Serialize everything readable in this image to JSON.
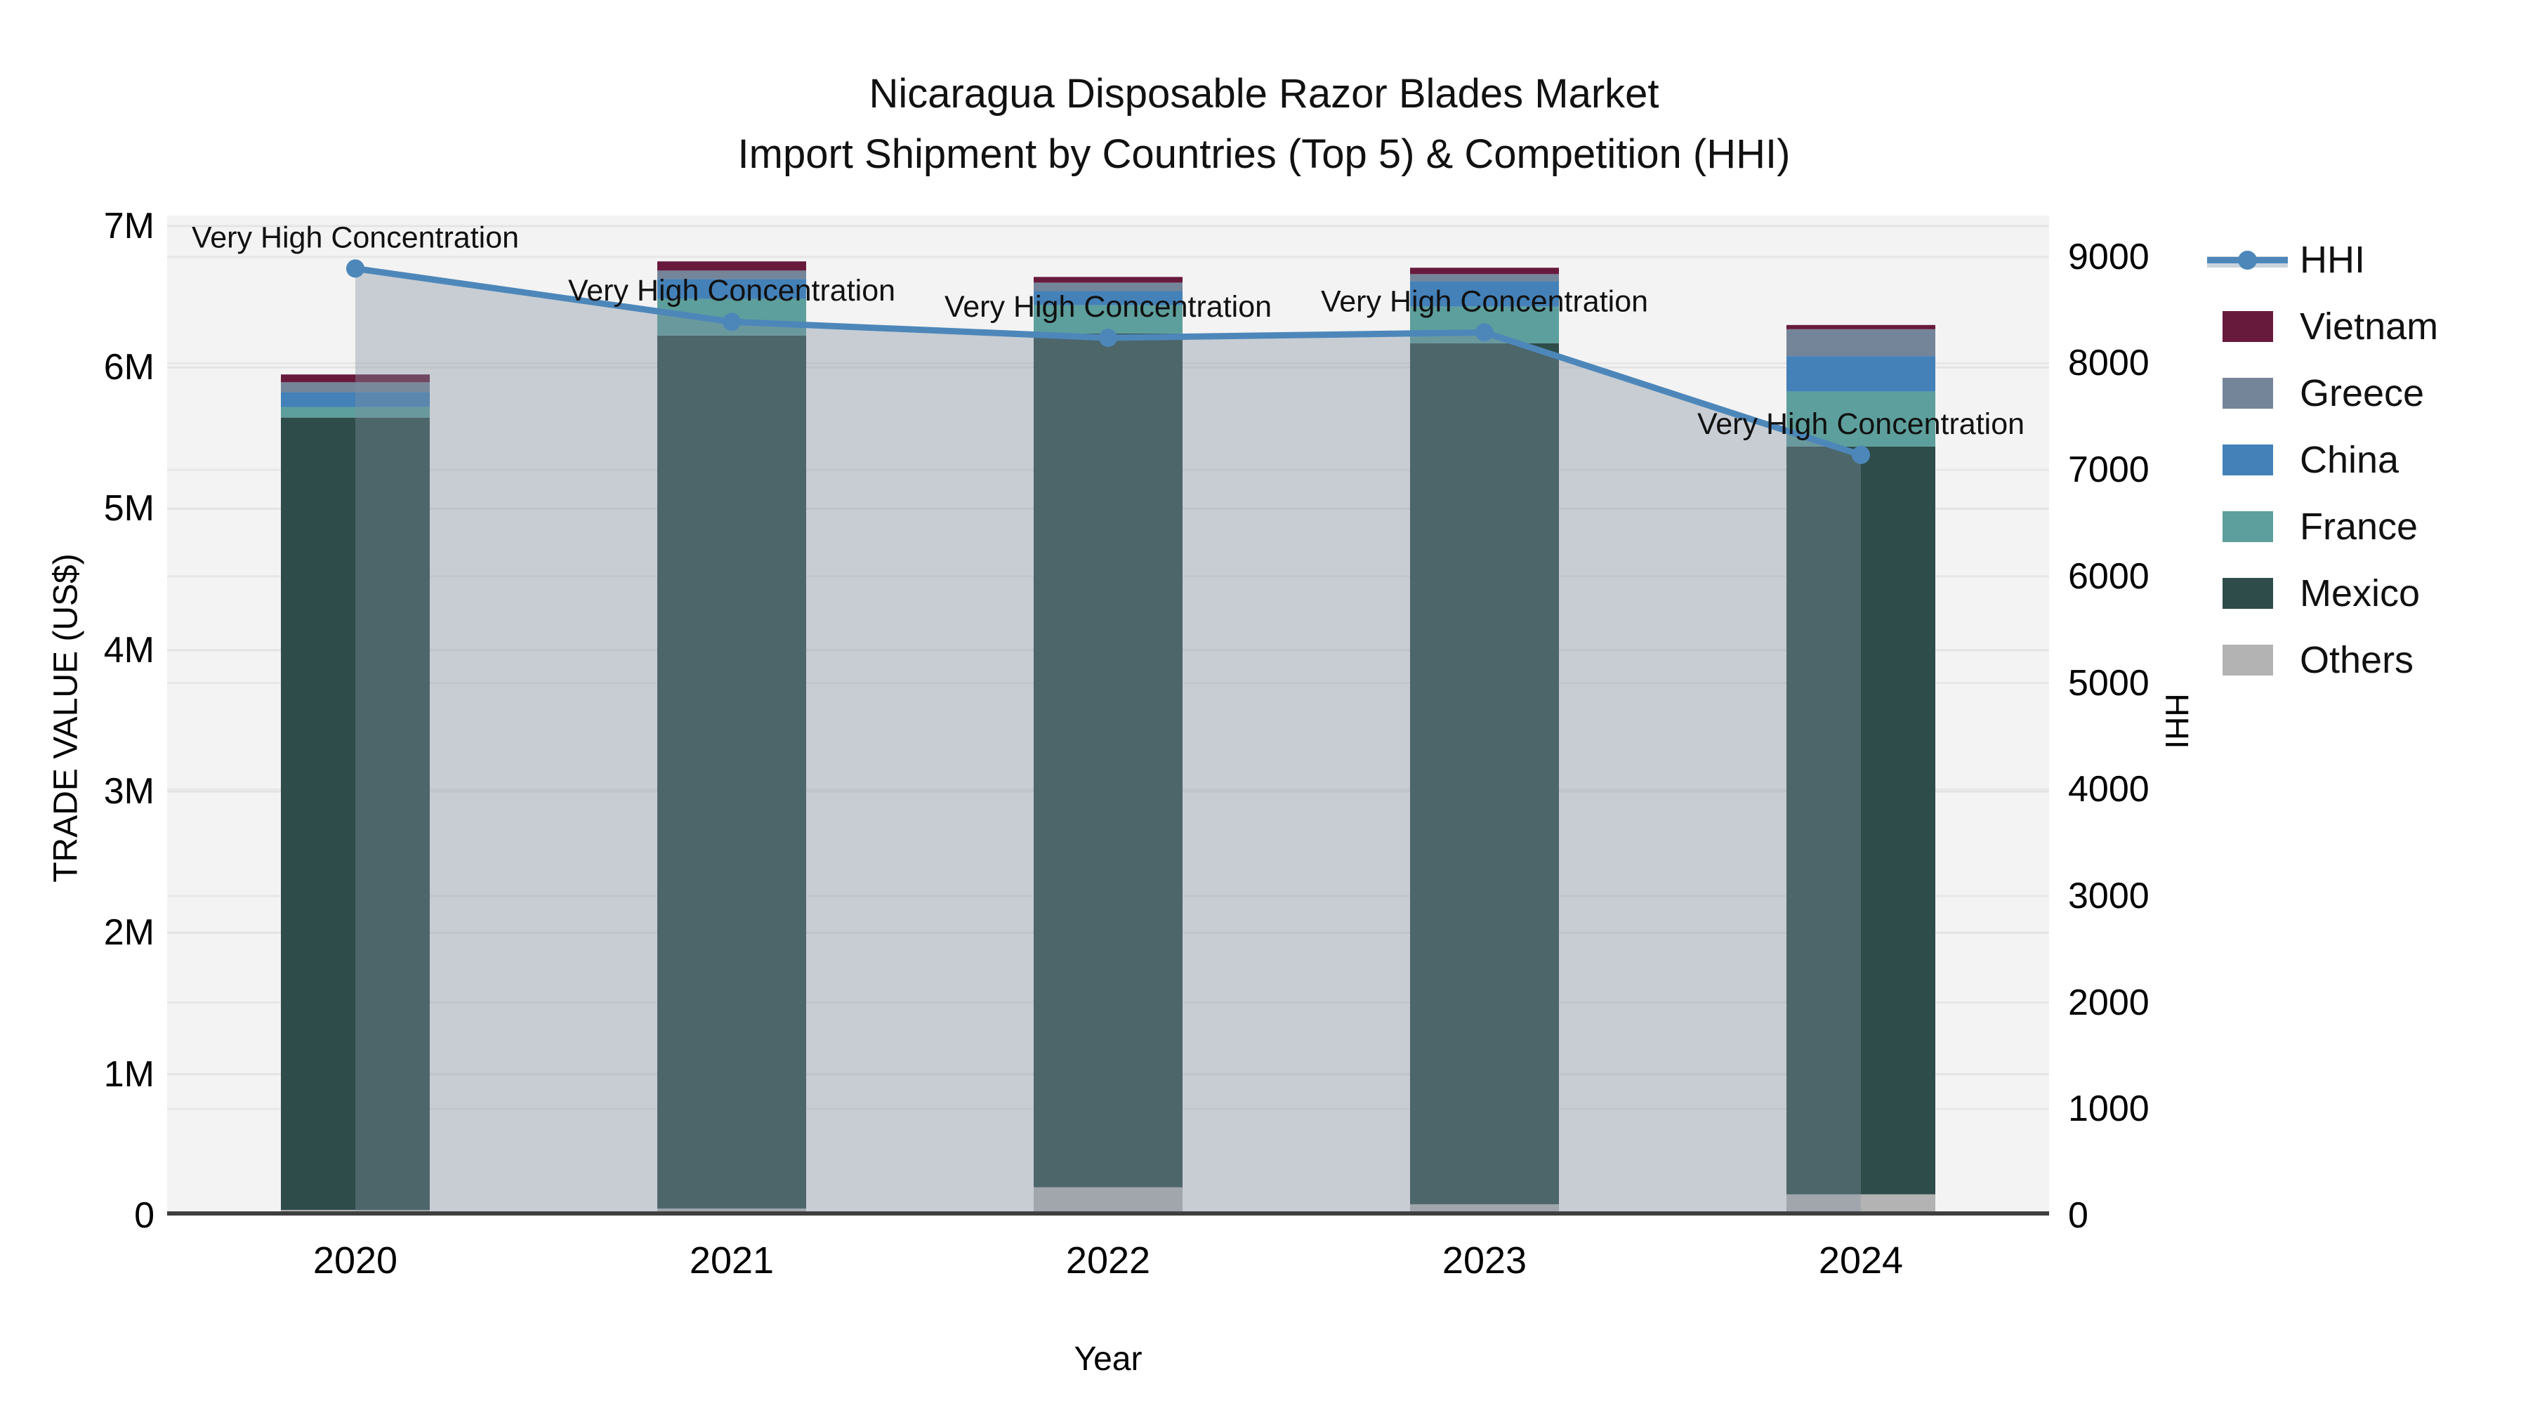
{
  "title": {
    "line1": "Nicaragua Disposable Razor Blades Market",
    "line2": "Import Shipment by Countries (Top 5) & Competition (HHI)"
  },
  "axes": {
    "left": {
      "title": "TRADE VALUE (US$)",
      "ticks": [
        "0",
        "1M",
        "2M",
        "3M",
        "4M",
        "5M",
        "6M",
        "7M"
      ]
    },
    "right": {
      "title": "HHI",
      "ticks": [
        "0",
        "1000",
        "2000",
        "3000",
        "4000",
        "5000",
        "6000",
        "7000",
        "8000",
        "9000"
      ]
    },
    "x": {
      "title": "Year"
    }
  },
  "legend": {
    "items": [
      {
        "label": "HHI",
        "type": "line",
        "color": "#4d87ba"
      },
      {
        "label": "Vietnam",
        "type": "swatch",
        "color": "#681a3d"
      },
      {
        "label": "Greece",
        "type": "swatch",
        "color": "#74859a"
      },
      {
        "label": "China",
        "type": "swatch",
        "color": "#4481b8"
      },
      {
        "label": "France",
        "type": "swatch",
        "color": "#5d9f9c"
      },
      {
        "label": "Mexico",
        "type": "swatch",
        "color": "#2e4c49"
      },
      {
        "label": "Others",
        "type": "swatch",
        "color": "#b3b3b3"
      }
    ]
  },
  "chart_data": {
    "type": "bar",
    "stacked": true,
    "title": "Nicaragua Disposable Razor Blades Market — Import Shipment by Countries (Top 5) & Competition (HHI)",
    "xlabel": "Year",
    "ylabel_left": "TRADE VALUE (US$)",
    "ylabel_right": "HHI",
    "categories": [
      "2020",
      "2021",
      "2022",
      "2023",
      "2024"
    ],
    "series": [
      {
        "name": "Others",
        "color": "#b3b3b3",
        "values": [
          40000,
          50000,
          200000,
          80000,
          150000
        ]
      },
      {
        "name": "Mexico",
        "color": "#2e4c49",
        "values": [
          5605000,
          6175000,
          6040000,
          6090000,
          5290000
        ]
      },
      {
        "name": "France",
        "color": "#5d9f9c",
        "values": [
          75000,
          260000,
          200000,
          260000,
          390000
        ]
      },
      {
        "name": "China",
        "color": "#4481b8",
        "values": [
          105000,
          140000,
          100000,
          180000,
          250000
        ]
      },
      {
        "name": "Greece",
        "color": "#74859a",
        "values": [
          70000,
          60000,
          60000,
          50000,
          190000
        ]
      },
      {
        "name": "Vietnam",
        "color": "#681a3d",
        "values": [
          55000,
          65000,
          40000,
          45000,
          30000
        ]
      }
    ],
    "line_series": {
      "name": "HHI",
      "axis": "right",
      "color": "#4d87ba",
      "fill_color": "rgba(130,145,160,0.38)",
      "values": [
        8890,
        8390,
        8240,
        8290,
        7140
      ]
    },
    "annotation_text": "Very High Concentration",
    "ylim_left": [
      0,
      7074000
    ],
    "ylim_right": [
      0,
      9387
    ],
    "left_tick_values": [
      0,
      1000000,
      2000000,
      3000000,
      4000000,
      5000000,
      6000000,
      7000000
    ],
    "right_tick_values": [
      0,
      1000,
      2000,
      3000,
      4000,
      5000,
      6000,
      7000,
      8000,
      9000
    ],
    "grid": true,
    "legend_position": "right",
    "plot_background": "#f3f3f3"
  }
}
